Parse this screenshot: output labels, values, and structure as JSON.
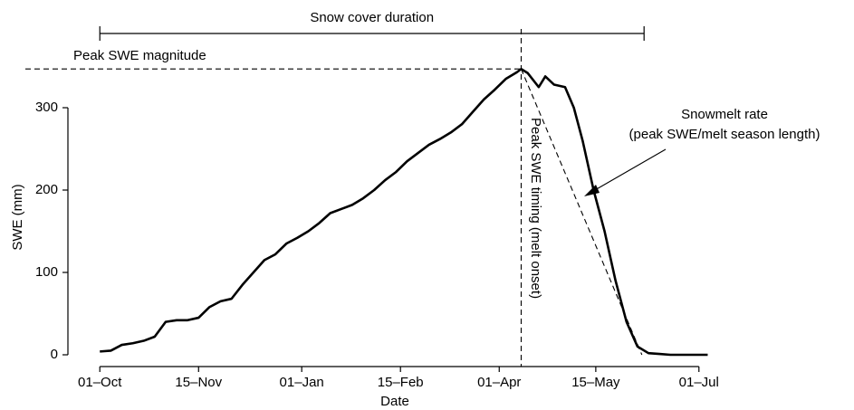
{
  "chart_data": {
    "type": "line",
    "x_label": "Date",
    "y_label": "SWE (mm)",
    "x": [
      0,
      5,
      10,
      15,
      20,
      25,
      30,
      35,
      40,
      45,
      50,
      55,
      60,
      65,
      70,
      75,
      80,
      85,
      90,
      95,
      100,
      105,
      110,
      115,
      120,
      125,
      130,
      135,
      140,
      145,
      150,
      155,
      160,
      165,
      170,
      175,
      180,
      185,
      190,
      192,
      195,
      200,
      203,
      207,
      212,
      216,
      220,
      225,
      230,
      235,
      240,
      245,
      250,
      255,
      260,
      270,
      277
    ],
    "series": [
      {
        "color": "#000000",
        "values": [
          4,
          5,
          12,
          14,
          17,
          22,
          40,
          42,
          42,
          45,
          58,
          65,
          68,
          85,
          100,
          115,
          122,
          135,
          142,
          150,
          160,
          172,
          177,
          182,
          190,
          200,
          212,
          222,
          235,
          245,
          255,
          262,
          270,
          280,
          295,
          310,
          322,
          335,
          343,
          347,
          342,
          325,
          338,
          328,
          325,
          300,
          260,
          200,
          150,
          90,
          40,
          10,
          2,
          1,
          0,
          0,
          0
        ]
      }
    ],
    "xlim": [
      -10,
      283
    ],
    "xticks": [
      {
        "value": 0,
        "label": "01–Oct"
      },
      {
        "value": 45,
        "label": "15–Nov"
      },
      {
        "value": 92,
        "label": "01–Jan"
      },
      {
        "value": 137,
        "label": "15–Feb"
      },
      {
        "value": 182,
        "label": "01–Apr"
      },
      {
        "value": 226,
        "label": "15–May"
      },
      {
        "value": 273,
        "label": "01–Jul"
      }
    ],
    "ylim": [
      -15,
      365
    ],
    "yticks": [
      0,
      100,
      200,
      300
    ],
    "annotations": {
      "duration": {
        "label": "Snow cover duration",
        "start": 0,
        "end": 248
      },
      "peak_magnitude": {
        "label": "Peak SWE magnitude",
        "index": 39
      },
      "peak_timing": {
        "label": "Peak SWE timing (melt onset)",
        "index": 39
      },
      "melt_rate": {
        "label": "Snowmelt rate",
        "sublabel": "(peak SWE/melt season length)",
        "end": 247
      }
    }
  }
}
